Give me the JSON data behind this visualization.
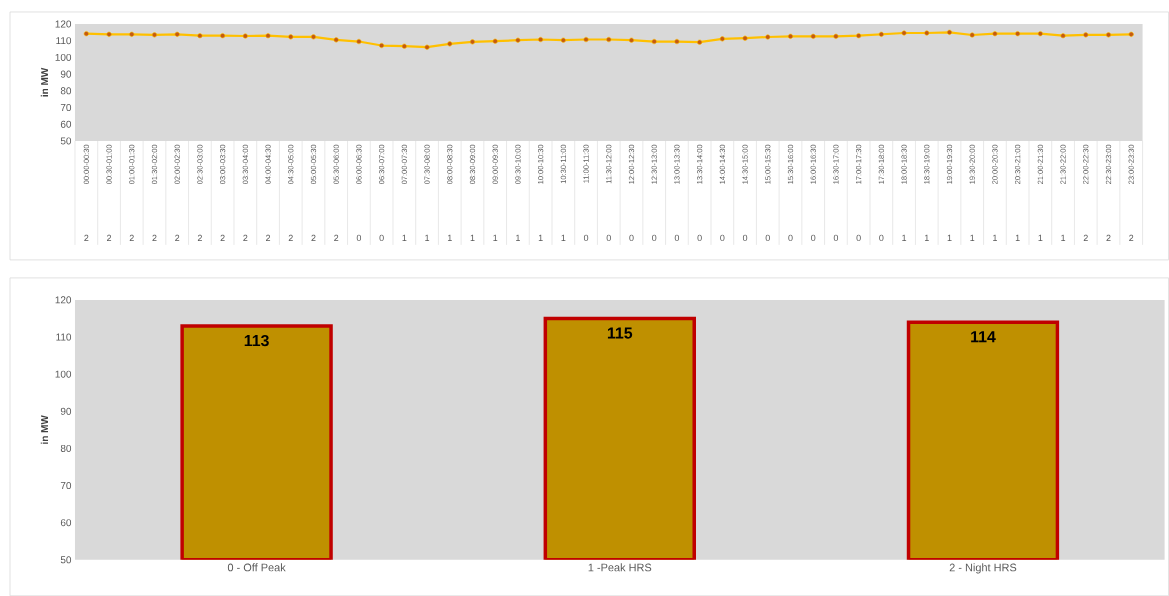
{
  "chart_data": [
    {
      "type": "line",
      "ylabel": "in MW",
      "color": "#ffc000",
      "marker": "circle",
      "categories": [
        "00:00-00:30",
        "00:30-01:00",
        "01:00-01:30",
        "01:30-02:00",
        "02:00-02:30",
        "02:30-03:00",
        "03:00-03:30",
        "03:30-04:00",
        "04:00-04:30",
        "04:30-05:00",
        "05:00-05:30",
        "05:30-06:00",
        "06:00-06:30",
        "06:30-07:00",
        "07:00-07:30",
        "07:30-08:00",
        "08:00-08:30",
        "08:30-09:00",
        "09:00-09:30",
        "09:30-10:00",
        "10:00-10:30",
        "10:30-11:00",
        "11:00-11:30",
        "11:30-12:00",
        "12:00-12:30",
        "12:30-13:00",
        "13:00-13:30",
        "13:30-14:00",
        "14:00-14:30",
        "14:30-15:00",
        "15:00-15:30",
        "15:30-16:00",
        "16:00-16:30",
        "16:30-17:00",
        "17:00-17:30",
        "17:30-18:00",
        "18:00-18:30",
        "18:30-19:00",
        "19:00-19:30",
        "19:30-20:00",
        "20:00-20:30",
        "20:30-21:00",
        "21:00-21:30",
        "21:30-22:00",
        "22:00-22:30",
        "22:30-23:00",
        "23:00-23:30"
      ],
      "values": [
        114.2,
        113.8,
        113.8,
        113.5,
        113.8,
        113,
        113,
        112.8,
        113,
        112.3,
        112.3,
        110.5,
        109.5,
        107.1,
        106.7,
        106.1,
        108.1,
        109.3,
        109.7,
        110.3,
        110.7,
        110.3,
        110.7,
        110.7,
        110.3,
        109.5,
        109.5,
        109.1,
        111.1,
        111.5,
        112.2,
        112.6,
        112.6,
        112.6,
        113,
        113.8,
        114.6,
        114.6,
        115,
        113.4,
        114.2,
        114.2,
        114.2,
        113,
        113.5,
        113.5,
        113.8
      ],
      "ylim": [
        50,
        120
      ],
      "yticks": [
        50,
        60,
        70,
        80,
        90,
        100,
        110,
        120
      ],
      "annotations": [
        "2",
        "2",
        "2",
        "2",
        "2",
        "2",
        "2",
        "2",
        "2",
        "2",
        "2",
        "2",
        "0",
        "0",
        "1",
        "1",
        "1",
        "1",
        "1",
        "1",
        "1",
        "1",
        "0",
        "0",
        "0",
        "0",
        "0",
        "0",
        "0",
        "0",
        "0",
        "0",
        "0",
        "0",
        "0",
        "0",
        "1",
        "1",
        "1",
        "1",
        "1",
        "1",
        "1",
        "1",
        "2",
        "2",
        "2"
      ]
    },
    {
      "type": "bar",
      "ylabel": "in MW",
      "color": "#bf9000",
      "categories": [
        "0 - Off Peak",
        "1 -Peak HRS",
        "2 - Night HRS"
      ],
      "values": [
        113,
        115,
        114
      ],
      "data_labels": true,
      "ylim": [
        50,
        120
      ],
      "yticks": [
        50,
        60,
        70,
        80,
        90,
        100,
        110,
        120
      ]
    }
  ]
}
